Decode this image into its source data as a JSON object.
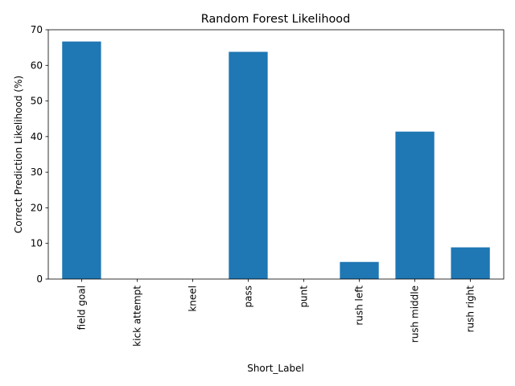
{
  "chart_data": {
    "type": "bar",
    "title": "Random Forest Likelihood",
    "xlabel": "Short_Label",
    "ylabel": "Correct Prediction Likelihood (%)",
    "categories": [
      "field goal",
      "kick attempt",
      "kneel",
      "pass",
      "punt",
      "rush left",
      "rush middle",
      "rush right"
    ],
    "values": [
      66.7,
      0,
      0,
      63.8,
      0,
      4.8,
      41.4,
      8.9
    ],
    "ylim": [
      0,
      70
    ],
    "yticks": [
      0,
      10,
      20,
      30,
      40,
      50,
      60,
      70
    ],
    "bar_color": "#1f77b4",
    "grid": false,
    "legend": "none"
  }
}
